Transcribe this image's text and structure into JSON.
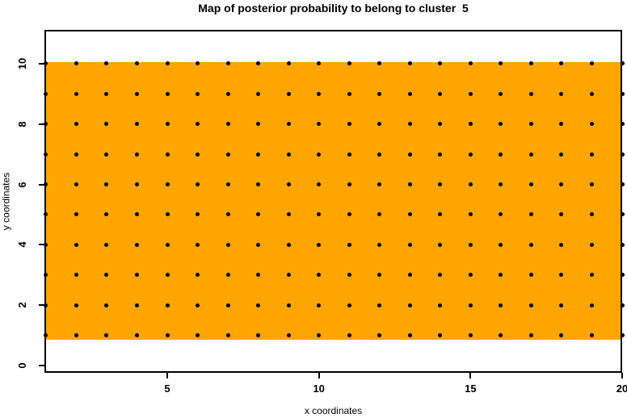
{
  "chart_data": {
    "type": "scatter",
    "title": "Map of posterior probability to belong to cluster  5",
    "xlabel": "x coordinates",
    "ylabel": "y coordinates",
    "x_ticks": [
      5,
      10,
      15,
      20
    ],
    "y_ticks": [
      0,
      2,
      4,
      6,
      8,
      10
    ],
    "xlim": [
      0.95,
      20.0
    ],
    "ylim": [
      -0.24,
      11.12
    ],
    "grid": false,
    "legend": null,
    "region": {
      "x_from": 0.95,
      "x_to": 20.0,
      "y_from": 0.86,
      "y_to": 10.04,
      "color": "#FFA500"
    },
    "points": {
      "x_values": [
        1,
        2,
        3,
        4,
        5,
        6,
        7,
        8,
        9,
        10,
        11,
        12,
        13,
        14,
        15,
        16,
        17,
        18,
        19,
        20
      ],
      "y_values": [
        1,
        2,
        3,
        4,
        5,
        6,
        7,
        8,
        9,
        10
      ],
      "marker": "filled-circle",
      "color": "#000000"
    },
    "colors": {
      "background": "#FFFFFF",
      "axis": "#000000",
      "region": "#FFA500",
      "points": "#000000"
    }
  }
}
